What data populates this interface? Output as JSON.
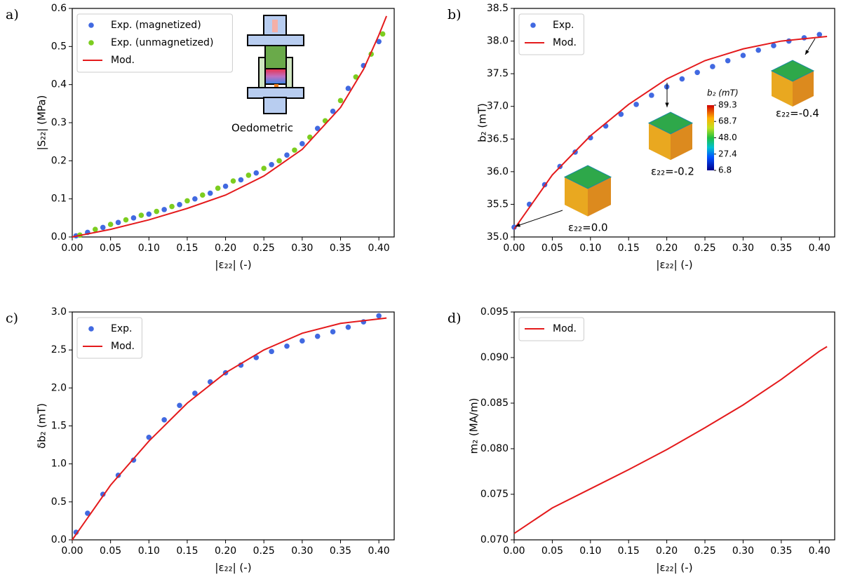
{
  "chart_data": [
    {
      "type": "line",
      "panel_label": "a)",
      "x_label": "|ε₂₂| (-)",
      "y_label": "|S₂₂| (MPa)",
      "xlim": [
        0,
        0.42
      ],
      "ylim": [
        0,
        0.6
      ],
      "xticks": [
        {
          "value": 0,
          "label": "0.00"
        },
        0.05,
        {
          "value": 0.1,
          "label": "0.10"
        },
        0.15,
        {
          "value": 0.2,
          "label": "0.20"
        },
        0.25,
        {
          "value": 0.3,
          "label": "0.30"
        },
        0.35,
        {
          "value": 0.4,
          "label": "0.40"
        }
      ],
      "yticks": [
        {
          "value": 0,
          "label": "0.0"
        },
        0.1,
        0.2,
        0.3,
        0.4,
        0.5,
        0.6
      ],
      "legend": "upper left",
      "annotations": [
        "Oedometric"
      ],
      "series": [
        {
          "name": "Exp. (magnetized)",
          "type": "scatter",
          "color": "#4169e1",
          "x": [
            0.005,
            0.02,
            0.04,
            0.06,
            0.08,
            0.1,
            0.12,
            0.14,
            0.16,
            0.18,
            0.2,
            0.22,
            0.24,
            0.26,
            0.28,
            0.3,
            0.32,
            0.34,
            0.36,
            0.38,
            0.4
          ],
          "values": [
            0.003,
            0.012,
            0.025,
            0.038,
            0.05,
            0.06,
            0.072,
            0.085,
            0.1,
            0.115,
            0.133,
            0.15,
            0.168,
            0.19,
            0.215,
            0.245,
            0.285,
            0.33,
            0.39,
            0.45,
            0.513
          ]
        },
        {
          "name": "Exp. (unmagnetized)",
          "type": "scatter",
          "color": "#7ccd1f",
          "x": [
            0.01,
            0.03,
            0.05,
            0.07,
            0.09,
            0.11,
            0.13,
            0.15,
            0.17,
            0.19,
            0.21,
            0.23,
            0.25,
            0.27,
            0.29,
            0.31,
            0.33,
            0.35,
            0.37,
            0.39,
            0.405
          ],
          "values": [
            0.005,
            0.02,
            0.033,
            0.045,
            0.057,
            0.067,
            0.08,
            0.095,
            0.11,
            0.128,
            0.147,
            0.162,
            0.18,
            0.2,
            0.228,
            0.262,
            0.305,
            0.358,
            0.42,
            0.48,
            0.533
          ]
        },
        {
          "name": "Mod.",
          "type": "line",
          "color": "#e41a1c",
          "x": [
            0,
            0.05,
            0.1,
            0.15,
            0.2,
            0.25,
            0.3,
            0.35,
            0.38,
            0.4,
            0.41
          ],
          "values": [
            0,
            0.02,
            0.045,
            0.075,
            0.11,
            0.16,
            0.23,
            0.34,
            0.44,
            0.53,
            0.58
          ]
        }
      ]
    },
    {
      "type": "line",
      "panel_label": "b)",
      "x_label": "|ε₂₂| (-)",
      "y_label": "b₂ (mT)",
      "xlim": [
        0,
        0.42
      ],
      "ylim": [
        35,
        38.5
      ],
      "xticks": [
        {
          "value": 0,
          "label": "0.00"
        },
        0.05,
        {
          "value": 0.1,
          "label": "0.10"
        },
        0.15,
        {
          "value": 0.2,
          "label": "0.20"
        },
        0.25,
        {
          "value": 0.3,
          "label": "0.30"
        },
        0.35,
        {
          "value": 0.4,
          "label": "0.40"
        }
      ],
      "yticks": [
        {
          "value": 35,
          "label": "35.0"
        },
        35.5,
        {
          "value": 36,
          "label": "36.0"
        },
        36.5,
        {
          "value": 37,
          "label": "37.0"
        },
        37.5,
        {
          "value": 38,
          "label": "38.0"
        },
        38.5
      ],
      "legend": "upper left",
      "annotations": [
        "ε₂₂=0.0",
        "ε₂₂=-0.2",
        "ε₂₂=-0.4"
      ],
      "colorbar": {
        "label": "b₂ (mT)",
        "ticks": [
          89.3,
          68.7,
          {
            "value": 48,
            "label": "48.0"
          },
          27.4,
          6.8
        ]
      },
      "series": [
        {
          "name": "Exp.",
          "type": "scatter",
          "color": "#4169e1",
          "x": [
            0,
            0.02,
            0.04,
            0.06,
            0.08,
            0.1,
            0.12,
            0.14,
            0.16,
            0.18,
            0.2,
            0.22,
            0.24,
            0.26,
            0.28,
            0.3,
            0.32,
            0.34,
            0.36,
            0.38,
            0.4
          ],
          "values": [
            35.15,
            35.5,
            35.8,
            36.08,
            36.3,
            36.52,
            36.7,
            36.88,
            37.03,
            37.17,
            37.3,
            37.42,
            37.52,
            37.61,
            37.7,
            37.78,
            37.86,
            37.93,
            38.0,
            38.05,
            38.1
          ]
        },
        {
          "name": "Mod.",
          "type": "line",
          "color": "#e41a1c",
          "x": [
            0,
            0.05,
            0.1,
            0.15,
            0.2,
            0.25,
            0.3,
            0.35,
            0.41
          ],
          "values": [
            35.12,
            35.95,
            36.55,
            37.03,
            37.42,
            37.7,
            37.88,
            38.0,
            38.07
          ]
        }
      ]
    },
    {
      "type": "line",
      "panel_label": "c)",
      "x_label": "|ε₂₂| (-)",
      "y_label": "δb₂ (mT)",
      "xlim": [
        0,
        0.42
      ],
      "ylim": [
        0,
        3
      ],
      "xticks": [
        {
          "value": 0,
          "label": "0.00"
        },
        0.05,
        {
          "value": 0.1,
          "label": "0.10"
        },
        0.15,
        {
          "value": 0.2,
          "label": "0.20"
        },
        0.25,
        {
          "value": 0.3,
          "label": "0.30"
        },
        0.35,
        {
          "value": 0.4,
          "label": "0.40"
        }
      ],
      "yticks": [
        {
          "value": 0,
          "label": "0.0"
        },
        0.5,
        {
          "value": 1,
          "label": "1.0"
        },
        1.5,
        {
          "value": 2,
          "label": "2.0"
        },
        2.5,
        {
          "value": 3,
          "label": "3.0"
        }
      ],
      "legend": "upper left",
      "series": [
        {
          "name": "Exp.",
          "type": "scatter",
          "color": "#4169e1",
          "x": [
            0.005,
            0.02,
            0.04,
            0.06,
            0.08,
            0.1,
            0.12,
            0.14,
            0.16,
            0.18,
            0.2,
            0.22,
            0.24,
            0.26,
            0.28,
            0.3,
            0.32,
            0.34,
            0.36,
            0.38,
            0.4
          ],
          "values": [
            0.1,
            0.35,
            0.6,
            0.85,
            1.05,
            1.35,
            1.58,
            1.77,
            1.93,
            2.08,
            2.2,
            2.3,
            2.4,
            2.48,
            2.55,
            2.62,
            2.68,
            2.74,
            2.8,
            2.87,
            2.95
          ]
        },
        {
          "name": "Mod.",
          "type": "line",
          "color": "#e41a1c",
          "x": [
            0,
            0.05,
            0.1,
            0.15,
            0.2,
            0.25,
            0.3,
            0.35,
            0.41
          ],
          "values": [
            0,
            0.72,
            1.3,
            1.8,
            2.2,
            2.5,
            2.72,
            2.85,
            2.92
          ]
        }
      ]
    },
    {
      "type": "line",
      "panel_label": "d)",
      "x_label": "|ε₂₂| (-)",
      "y_label": "m₂ (MA/m)",
      "xlim": [
        0,
        0.42
      ],
      "ylim": [
        0.07,
        0.095
      ],
      "xticks": [
        {
          "value": 0,
          "label": "0.00"
        },
        0.05,
        {
          "value": 0.1,
          "label": "0.10"
        },
        0.15,
        {
          "value": 0.2,
          "label": "0.20"
        },
        0.25,
        {
          "value": 0.3,
          "label": "0.30"
        },
        0.35,
        {
          "value": 0.4,
          "label": "0.40"
        }
      ],
      "yticks": [
        {
          "value": 0.07,
          "label": "0.070"
        },
        0.075,
        {
          "value": 0.08,
          "label": "0.080"
        },
        0.085,
        {
          "value": 0.09,
          "label": "0.090"
        },
        0.095
      ],
      "legend": "upper left",
      "series": [
        {
          "name": "Mod.",
          "type": "line",
          "color": "#e41a1c",
          "x": [
            0,
            0.05,
            0.1,
            0.15,
            0.2,
            0.25,
            0.3,
            0.35,
            0.4,
            0.41
          ],
          "values": [
            0.0707,
            0.0735,
            0.0756,
            0.0777,
            0.0799,
            0.0823,
            0.0848,
            0.0876,
            0.0907,
            0.0912
          ]
        }
      ]
    }
  ]
}
